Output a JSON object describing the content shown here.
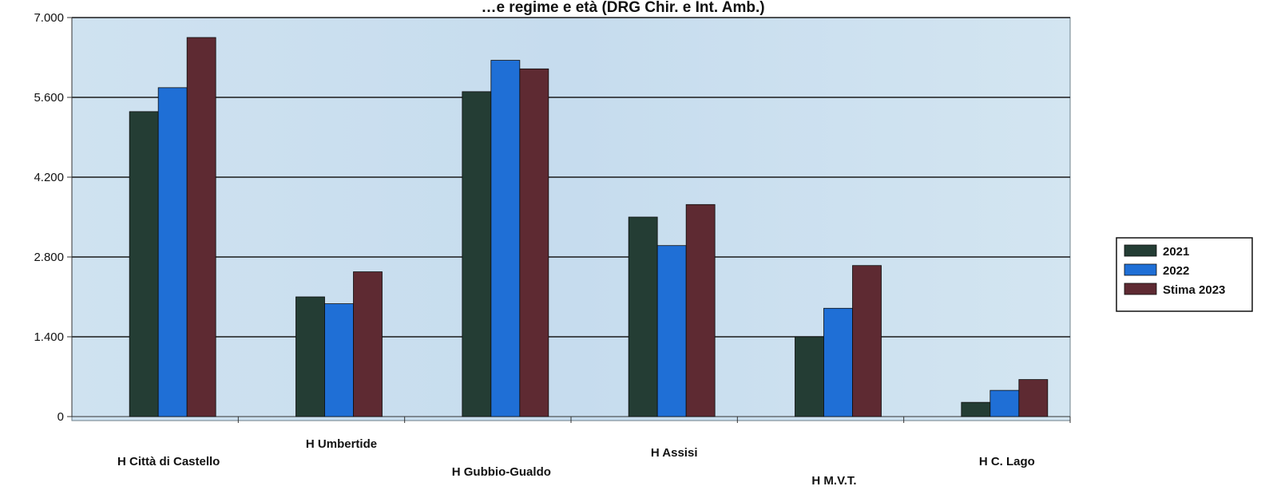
{
  "chart_data": {
    "type": "bar",
    "title": "…e regime e età (DRG Chir. e Int. Amb.)",
    "xlabel": "",
    "ylabel": "",
    "ylim": [
      0,
      7000
    ],
    "y_ticks": [
      "0",
      "1.400",
      "2.800",
      "4.200",
      "5.600",
      "7.000"
    ],
    "y_tick_values": [
      0,
      1400,
      2800,
      4200,
      5600,
      7000
    ],
    "grid": true,
    "legend_position": "right",
    "categories": [
      "H Città di Castello",
      "H Umbertide",
      "H Gubbio-Gualdo",
      "H Assisi",
      "H M.V.T.",
      "H C. Lago"
    ],
    "series": [
      {
        "name": "2021",
        "color": "#243d34",
        "values": [
          5350,
          2100,
          5700,
          3500,
          1400,
          250
        ]
      },
      {
        "name": "2022",
        "color": "#1f6fd6",
        "values": [
          5770,
          1980,
          6250,
          3000,
          1900,
          460
        ]
      },
      {
        "name": "Stima 2023",
        "color": "#5e2a32",
        "values": [
          6650,
          2540,
          6100,
          3720,
          2650,
          650
        ]
      }
    ]
  }
}
